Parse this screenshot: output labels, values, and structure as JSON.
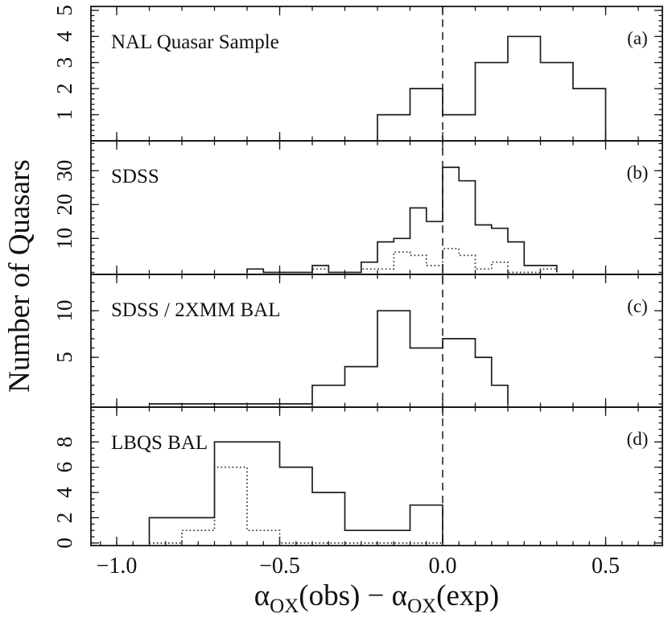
{
  "figure": {
    "y_axis_title": "Number of Quasars",
    "x_axis_title_parts": {
      "alpha1": "α",
      "sub1": "OX",
      "obs": "(obs)",
      "minus": " − ",
      "alpha2": "α",
      "sub2": "OX",
      "exp": "(exp)"
    },
    "line_color": "#1c1c1c",
    "background_color": "#ffffff"
  },
  "chart_data": {
    "type": "bar",
    "subtype": "step-histograms-4-panel-stack",
    "xlabel": "α_OX(obs) − α_OX(exp)",
    "ylabel": "Number of Quasars",
    "xlim": [
      -1.079,
      0.674
    ],
    "x_major_ticks": [
      -1.0,
      -0.5,
      0.0,
      0.5
    ],
    "x_tick_labels": [
      "−1.0",
      "−0.5",
      "0.0",
      "0.5"
    ],
    "x_minor_step": 0.1,
    "x_minor_step_bottom": 0.05,
    "dashed_vline_x": 0.0,
    "grid": false,
    "legend": "none",
    "panels": [
      {
        "id": "a",
        "label": "NAL Quasar Sample",
        "letter": "(a)",
        "ylim": [
          0,
          5.15
        ],
        "y_major_ticks": [
          1,
          2,
          3,
          4,
          5
        ],
        "y_tick_labels": [
          "1",
          "2",
          "3",
          "4",
          "5"
        ],
        "y_minor_step": 0.2,
        "series": [
          {
            "name": "all-quasars",
            "style": "solid",
            "bin_width": 0.1,
            "x_start": -0.2,
            "values": [
              1,
              2,
              1,
              3,
              4,
              3,
              2
            ]
          }
        ]
      },
      {
        "id": "b",
        "label": "SDSS",
        "letter": "(b)",
        "ylim": [
          -0.6,
          38.8
        ],
        "y_major_ticks": [
          10,
          20,
          30
        ],
        "y_tick_labels": [
          "10",
          "20",
          "30"
        ],
        "y_minor_step": 2,
        "series": [
          {
            "name": "sdss-all",
            "style": "solid",
            "bin_width": 0.05,
            "x_start": -0.6,
            "values": [
              1,
              0,
              0,
              0,
              2,
              0,
              0,
              3,
              9,
              10,
              19,
              15,
              31,
              27,
              14,
              13,
              9,
              2,
              2
            ]
          },
          {
            "name": "sdss-subset",
            "style": "dotted",
            "bin_width": 0.05,
            "x_start": -0.4,
            "values": [
              1,
              0,
              0,
              1,
              1,
              6,
              5,
              2,
              7,
              5,
              1,
              3,
              0,
              0,
              1
            ]
          }
        ]
      },
      {
        "id": "c",
        "label": "SDSS / 2XMM BAL",
        "letter": "(c)",
        "ylim": [
          -0.35,
          13.9
        ],
        "y_major_ticks": [
          5,
          10
        ],
        "y_tick_labels": [
          "5",
          "10"
        ],
        "y_minor_step": 1,
        "series": [
          {
            "name": "sdss-2xmm-bal",
            "style": "solid",
            "bin_width": 0.05,
            "x_start": -0.9,
            "values": [
              0,
              0,
              0,
              0,
              0,
              0,
              0,
              0,
              0,
              0,
              2,
              2,
              4,
              4,
              10,
              10,
              6,
              6,
              7,
              7,
              5,
              2
            ]
          }
        ]
      },
      {
        "id": "d",
        "label": "LBQS BAL",
        "letter": "(d)",
        "ylim": [
          -0.2,
          10.75
        ],
        "y_major_ticks": [
          0,
          2,
          4,
          6,
          8
        ],
        "y_tick_labels": [
          "0",
          "2",
          "4",
          "6",
          "8"
        ],
        "y_minor_step": 0.5,
        "series": [
          {
            "name": "lbqs-bal-all",
            "style": "solid",
            "bin_width": 0.1,
            "x_start": -0.9,
            "values": [
              2,
              2,
              8,
              8,
              6,
              4,
              1,
              1,
              3
            ]
          },
          {
            "name": "lbqs-bal-subset",
            "style": "dotted",
            "bin_width": 0.1,
            "x_start": -0.9,
            "values": [
              0,
              1,
              6,
              1,
              0,
              0,
              0,
              0,
              0
            ]
          }
        ]
      }
    ]
  }
}
